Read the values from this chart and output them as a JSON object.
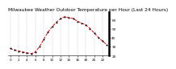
{
  "title": "Milwaukee Weather Outdoor Temperature per Hour (Last 24 Hours)",
  "hours": [
    0,
    1,
    2,
    3,
    4,
    5,
    6,
    7,
    8,
    9,
    10,
    11,
    12,
    13,
    14,
    15,
    16,
    17,
    18,
    19,
    20,
    21,
    22,
    23
  ],
  "temps": [
    28,
    26,
    25,
    24,
    23,
    22,
    24,
    30,
    38,
    46,
    52,
    57,
    61,
    63,
    62,
    61,
    58,
    56,
    54,
    50,
    45,
    40,
    36,
    32
  ],
  "line_color": "#dd0000",
  "marker_color": "#000000",
  "bg_color": "#ffffff",
  "ylim": [
    20,
    68
  ],
  "yticks": [
    20,
    30,
    40,
    50,
    60
  ],
  "xticks": [
    0,
    2,
    4,
    6,
    8,
    10,
    12,
    14,
    16,
    18,
    20,
    22
  ],
  "title_fontsize": 4.2,
  "tick_fontsize": 3.0,
  "grid_color": "#aaaaaa"
}
